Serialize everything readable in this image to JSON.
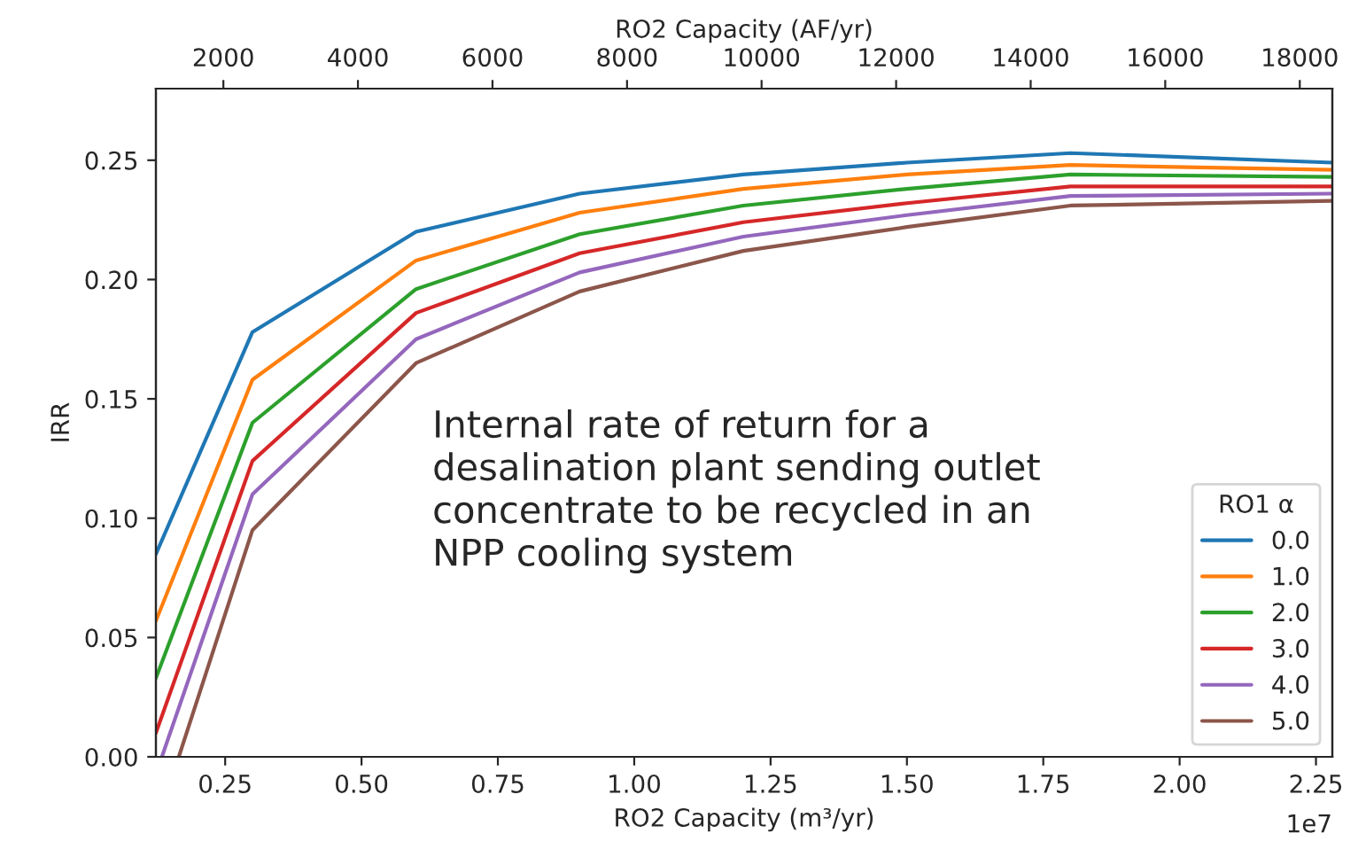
{
  "chart_data": {
    "type": "line",
    "xlabel": "RO2 Capacity (m³/yr)",
    "ylabel": "IRR",
    "x2label": "RO2 Capacity (AF/yr)",
    "legend_title": "RO1 α",
    "legend": "bottom right",
    "grid": false,
    "marker": "none",
    "line_style": "solid",
    "xlim": [
      0.123,
      2.28
    ],
    "xticks": [
      0.25,
      {
        "value": 0.5,
        "label": "0.50"
      },
      0.75,
      {
        "value": 1,
        "label": "1.00"
      },
      1.25,
      {
        "value": 1.5,
        "label": "1.50"
      },
      1.75,
      {
        "value": 2,
        "label": "2.00"
      },
      2.25
    ],
    "x2lim": [
      997,
      18484
    ],
    "x2ticks": [
      2000,
      4000,
      6000,
      8000,
      10000,
      12000,
      14000,
      16000,
      18000
    ],
    "ylim": [
      0,
      0.28
    ],
    "yticks": [
      {
        "value": 0,
        "label": "0.00"
      },
      0.05,
      {
        "value": 0.1,
        "label": "0.10"
      },
      0.15,
      {
        "value": 0.2,
        "label": "0.20"
      },
      0.25
    ],
    "annotations": [
      "1e7",
      "Internal rate of return for a\ndesalination plant sending outlet\nconcentrate to be recycled in an\nNPP cooling system"
    ],
    "series": [
      {
        "name": "0.0",
        "color": "#1f77b4",
        "x": [
          0.123,
          0.3,
          0.6,
          0.9,
          1.2,
          1.5,
          1.8,
          2.28
        ],
        "values": [
          0.085,
          0.178,
          0.22,
          0.236,
          0.244,
          0.249,
          0.253,
          0.249
        ]
      },
      {
        "name": "1.0",
        "color": "#ff7f0e",
        "x": [
          0.123,
          0.3,
          0.6,
          0.9,
          1.2,
          1.5,
          1.8,
          2.28
        ],
        "values": [
          0.057,
          0.158,
          0.208,
          0.228,
          0.238,
          0.244,
          0.248,
          0.246
        ]
      },
      {
        "name": "2.0",
        "color": "#2ca02c",
        "x": [
          0.123,
          0.3,
          0.6,
          0.9,
          1.2,
          1.5,
          1.8,
          2.28
        ],
        "values": [
          0.033,
          0.14,
          0.196,
          0.219,
          0.231,
          0.238,
          0.244,
          0.243
        ]
      },
      {
        "name": "3.0",
        "color": "#d62728",
        "x": [
          0.123,
          0.3,
          0.6,
          0.9,
          1.2,
          1.5,
          1.8,
          2.28
        ],
        "values": [
          0.01,
          0.124,
          0.186,
          0.211,
          0.224,
          0.232,
          0.239,
          0.239
        ]
      },
      {
        "name": "4.0",
        "color": "#9467bd",
        "x": [
          0.134,
          0.3,
          0.6,
          0.9,
          1.2,
          1.5,
          1.8,
          2.28
        ],
        "values": [
          0.0,
          0.11,
          0.175,
          0.203,
          0.218,
          0.227,
          0.235,
          0.236
        ]
      },
      {
        "name": "5.0",
        "color": "#8c564b",
        "x": [
          0.165,
          0.3,
          0.6,
          0.9,
          1.2,
          1.5,
          1.8,
          2.28
        ],
        "values": [
          0.0,
          0.095,
          0.165,
          0.195,
          0.212,
          0.222,
          0.231,
          0.233
        ]
      }
    ]
  }
}
